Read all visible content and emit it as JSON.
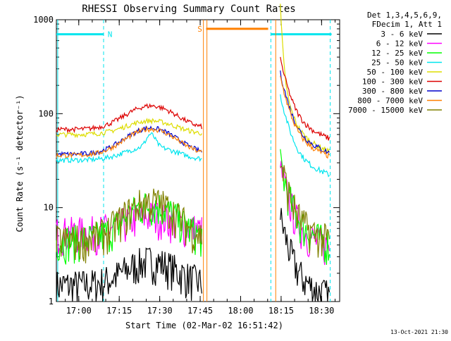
{
  "chart_data": {
    "type": "line",
    "title": "RHESSI Observing Summary Count Rates",
    "xlabel": "Start Time (02-Mar-02 16:51:42)",
    "ylabel": "Count Rate (s⁻¹ detector⁻¹)",
    "y_scale": "log",
    "ylim": [
      1,
      1000
    ],
    "xlim_minutes": [
      0,
      105
    ],
    "x_tick_labels": [
      "17:00",
      "17:15",
      "17:30",
      "17:45",
      "18:00",
      "18:15",
      "18:30"
    ],
    "x_tick_minutes": [
      8.3,
      23.3,
      38.3,
      53.3,
      68.3,
      83.3,
      98.3
    ],
    "y_tick_labels": [
      "1",
      "10",
      "100",
      "1000"
    ],
    "y_tick_values": [
      1,
      10,
      100,
      1000
    ],
    "legend": {
      "position": "right",
      "header": [
        "Det 1,3,4,5,6,9,",
        "FDecim 1, Att 1"
      ]
    },
    "annotations": {
      "night_label": "N",
      "saa_label": "S",
      "night_color": "#00e5ee",
      "saa_color": "#ff7f00"
    },
    "series": [
      {
        "name": "3 - 6 keV",
        "color": "#000000",
        "day1": 1.5,
        "day2": 1.8,
        "amp1": 0.8
      },
      {
        "name": "6 - 12 keV",
        "color": "#ff00ff",
        "day1": 5.5,
        "day2": 6.0,
        "amp1": 0.5
      },
      {
        "name": "12 - 25 keV",
        "color": "#00ff00",
        "day1": 4.5,
        "day2": 6.5,
        "amp1": 1.4
      },
      {
        "name": "25 - 50 keV",
        "color": "#00e5ee",
        "day1": 32,
        "day2": 35,
        "amp1": 0.4
      },
      {
        "name": "50 - 100 keV",
        "color": "#dddd00",
        "day1": 60,
        "day2": 62,
        "amp1": 0.4
      },
      {
        "name": "100 - 300 keV",
        "color": "#dd0000",
        "day1": 68,
        "day2": 85,
        "amp1": 0.78
      },
      {
        "name": "300 - 800 keV",
        "color": "#0000cc",
        "day1": 37,
        "day2": 60,
        "amp1": 0.9
      },
      {
        "name": "800 - 7000 keV",
        "color": "#ff7f00",
        "day1": 36,
        "day2": 55,
        "amp1": 0.9
      },
      {
        "name": "7000 - 15000 keV",
        "color": "#808000",
        "day1": 4.5,
        "day2": 7.0,
        "amp1": 1.6
      }
    ]
  },
  "footer": {
    "timestamp": "13-Oct-2021 21:30"
  }
}
